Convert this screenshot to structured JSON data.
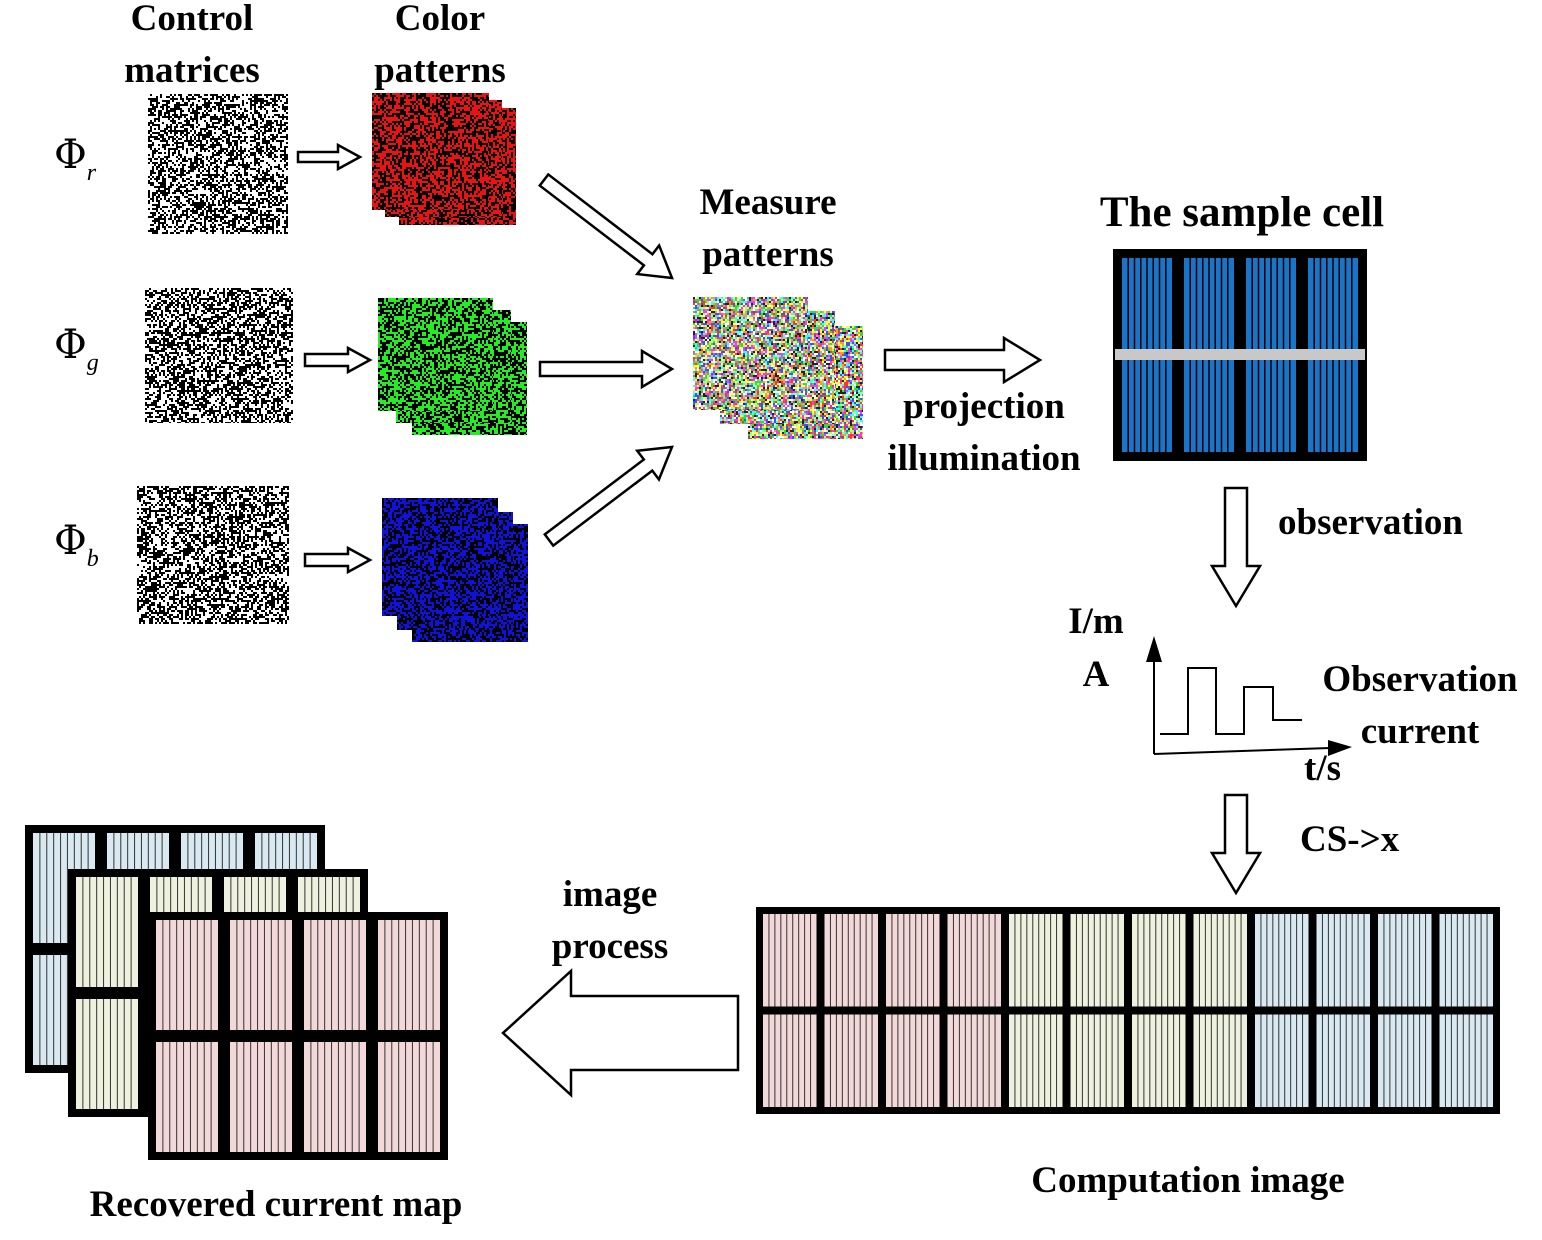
{
  "labels": {
    "control_matrices": [
      "Control",
      "matrices"
    ],
    "color_patterns": [
      "Color",
      "patterns"
    ],
    "measure_patterns": [
      "Measure",
      "patterns"
    ],
    "sample_cell": "The sample cell",
    "projection": [
      "projection",
      "illumination"
    ],
    "observation": "observation",
    "y_axis": [
      "I/m",
      "A"
    ],
    "x_axis": "t/s",
    "observation_current": [
      "Observation",
      "current"
    ],
    "cs": "CS->x",
    "image_process": [
      "image",
      "process"
    ],
    "computation_image": "Computation image",
    "recovered_map": "Recovered current map"
  },
  "phi": {
    "symbol": "Φ",
    "channels": [
      "r",
      "g",
      "b"
    ]
  },
  "colors": {
    "red_pattern": "#ee1111",
    "green_pattern": "#22ee22",
    "blue_pattern": "#1111dd",
    "cell_blue": "#1a75c8",
    "pink_tint": "#f2d8d8",
    "yellow_tint": "#eef1dd",
    "blue_tint": "#d8e9f1",
    "busbar_gray": "#c8c8c8"
  }
}
